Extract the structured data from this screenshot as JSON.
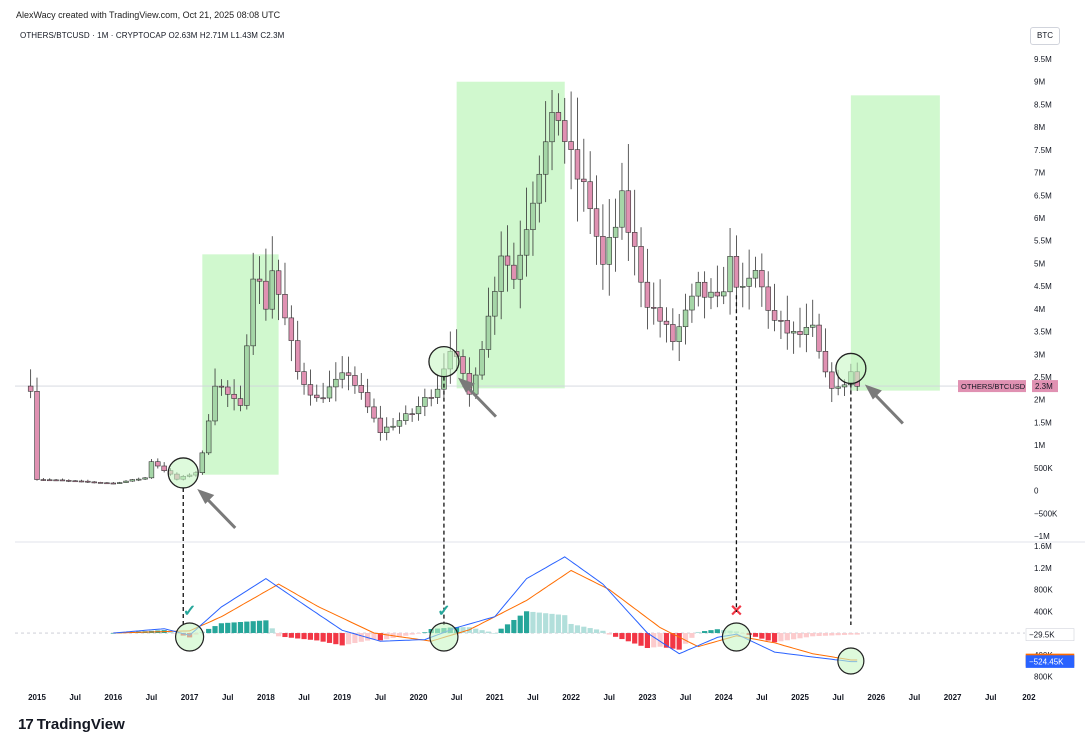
{
  "header": {
    "credit": "AlexWacy created with TradingView.com, Oct 21, 2025 08:08 UTC",
    "legend": "OTHERS/BTCUSD · 1M · CRYPTOCAP  O2.63M  H2.71M  L1.43M  C2.3M",
    "currency": "BTC"
  },
  "brand": {
    "logo_mark": "17",
    "logo_text": "TradingView"
  },
  "chart_data": [
    {
      "type": "candlestick",
      "symbol": "OTHERS/BTCUSD",
      "interval": "1M",
      "source": "CRYPTOCAP",
      "ohlc_last": {
        "open": "2.63M",
        "high": "2.71M",
        "low": "1.43M",
        "close": "2.3M"
      },
      "ylim": [
        -1000000,
        9500000
      ],
      "y_ticks": [
        "9.5M",
        "9M",
        "8.5M",
        "8M",
        "7.5M",
        "7M",
        "6.5M",
        "6M",
        "5.5M",
        "5M",
        "4.5M",
        "4M",
        "3.5M",
        "3M",
        "2.5M",
        "2M",
        "1.5M",
        "1M",
        "500K",
        "0",
        "−500K",
        "−1M"
      ],
      "y_tick_values": [
        9500000,
        9000000,
        8500000,
        8000000,
        7500000,
        7000000,
        6500000,
        6000000,
        5500000,
        5000000,
        4500000,
        4000000,
        3500000,
        3000000,
        2500000,
        2000000,
        1500000,
        1000000,
        500000,
        0,
        -500000,
        -1000000
      ],
      "x_ticks": [
        "2015",
        "Jul",
        "2016",
        "Jul",
        "2017",
        "Jul",
        "2018",
        "Jul",
        "2019",
        "Jul",
        "2020",
        "Jul",
        "2021",
        "Jul",
        "2022",
        "Jul",
        "2023",
        "Jul",
        "2024",
        "Jul",
        "2025",
        "Jul",
        "2026",
        "Jul",
        "2027",
        "Jul",
        "202"
      ],
      "last_price_label": "OTHERS/BTCUSD",
      "last_price_value": "2.3M",
      "last_price": 2300000,
      "anchors": [
        {
          "date": "2015-01",
          "close": 250000
        },
        {
          "date": "2016-01",
          "close": 160000
        },
        {
          "date": "2016-06",
          "close": 280000
        },
        {
          "date": "2016-07",
          "close": 650000
        },
        {
          "date": "2016-11",
          "close": 250000
        },
        {
          "date": "2017-02",
          "close": 400000
        },
        {
          "date": "2017-03",
          "close": 800000
        },
        {
          "date": "2017-05",
          "close": 2400000
        },
        {
          "date": "2017-09",
          "close": 1800000
        },
        {
          "date": "2017-11",
          "close": 4900000
        },
        {
          "date": "2018-01",
          "close": 4100000
        },
        {
          "date": "2018-02",
          "close": 4900000
        },
        {
          "date": "2018-06",
          "close": 2600000
        },
        {
          "date": "2018-09",
          "close": 2000000
        },
        {
          "date": "2019-02",
          "close": 2600000
        },
        {
          "date": "2019-07",
          "close": 1300000
        },
        {
          "date": "2019-12",
          "close": 1700000
        },
        {
          "date": "2020-04",
          "close": 2300000
        },
        {
          "date": "2020-06",
          "close": 3200000
        },
        {
          "date": "2020-09",
          "close": 2100000
        },
        {
          "date": "2020-12",
          "close": 3800000
        },
        {
          "date": "2021-02",
          "close": 5300000
        },
        {
          "date": "2021-04",
          "close": 4700000
        },
        {
          "date": "2021-08",
          "close": 7200000
        },
        {
          "date": "2021-11",
          "close": 8300000
        },
        {
          "date": "2022-01",
          "close": 7200000
        },
        {
          "date": "2022-04",
          "close": 6300000
        },
        {
          "date": "2022-06",
          "close": 4900000
        },
        {
          "date": "2022-09",
          "close": 6300000
        },
        {
          "date": "2023-01",
          "close": 4200000
        },
        {
          "date": "2023-05",
          "close": 3300000
        },
        {
          "date": "2023-09",
          "close": 4400000
        },
        {
          "date": "2023-12",
          "close": 4100000
        },
        {
          "date": "2024-02",
          "close": 5000000
        },
        {
          "date": "2024-04",
          "close": 4300000
        },
        {
          "date": "2024-06",
          "close": 4800000
        },
        {
          "date": "2024-09",
          "close": 3700000
        },
        {
          "date": "2024-12",
          "close": 3400000
        },
        {
          "date": "2025-03",
          "close": 3500000
        },
        {
          "date": "2025-05",
          "close": 2500000
        },
        {
          "date": "2025-07",
          "close": 2200000
        },
        {
          "date": "2025-09",
          "close": 2600000
        },
        {
          "date": "2025-10",
          "close": 2300000
        }
      ],
      "highlight_zones": [
        {
          "from": "2017-03",
          "to": "2018-03",
          "low": 350000,
          "high": 5200000
        },
        {
          "from": "2020-07",
          "to": "2021-12",
          "low": 2250000,
          "high": 9000000
        },
        {
          "from": "2025-09",
          "to": "2026-11",
          "low": 2200000,
          "high": 8700000
        }
      ],
      "entry_markers": [
        "2016-12",
        "2020-05",
        "2025-09"
      ],
      "colors": {
        "up": "#a5d6a7",
        "down": "#e091b2",
        "zone": "#c8f7c5",
        "arrow": "#7a7a7a",
        "last_price_bg": "#e091b2"
      }
    },
    {
      "type": "macd",
      "y_ticks": [
        "1.6M",
        "1.2M",
        "800K",
        "400K",
        "400K",
        "800K"
      ],
      "y_tick_values": [
        1600000,
        1200000,
        800000,
        400000,
        -400000,
        -800000
      ],
      "labels": [
        {
          "text": "−29.5K",
          "value": -29500,
          "bg": "#ffffff",
          "fg": "#131722"
        },
        {
          "text": "−494.95K",
          "value": -494950,
          "bg": "#ff6d00",
          "fg": "#ffffff"
        },
        {
          "text": "−524.45K",
          "value": -524450,
          "bg": "#2962ff",
          "fg": "#ffffff"
        }
      ],
      "macd_anchors": [
        {
          "date": "2016-01",
          "v": 0
        },
        {
          "date": "2016-09",
          "v": 80000
        },
        {
          "date": "2017-01",
          "v": -40000
        },
        {
          "date": "2017-06",
          "v": 480000
        },
        {
          "date": "2018-01",
          "v": 1000000
        },
        {
          "date": "2018-06",
          "v": 600000
        },
        {
          "date": "2019-01",
          "v": 50000
        },
        {
          "date": "2019-07",
          "v": -150000
        },
        {
          "date": "2020-02",
          "v": -120000
        },
        {
          "date": "2020-07",
          "v": 100000
        },
        {
          "date": "2021-01",
          "v": 300000
        },
        {
          "date": "2021-06",
          "v": 1000000
        },
        {
          "date": "2021-12",
          "v": 1400000
        },
        {
          "date": "2022-06",
          "v": 900000
        },
        {
          "date": "2023-01",
          "v": 0
        },
        {
          "date": "2023-06",
          "v": -380000
        },
        {
          "date": "2023-12",
          "v": -80000
        },
        {
          "date": "2024-03",
          "v": -20000
        },
        {
          "date": "2024-09",
          "v": -350000
        },
        {
          "date": "2025-03",
          "v": -440000
        },
        {
          "date": "2025-09",
          "v": -524450
        }
      ],
      "signal_anchors": [
        {
          "date": "2016-01",
          "v": 0
        },
        {
          "date": "2017-01",
          "v": 40000
        },
        {
          "date": "2017-06",
          "v": 300000
        },
        {
          "date": "2018-03",
          "v": 900000
        },
        {
          "date": "2018-09",
          "v": 500000
        },
        {
          "date": "2019-06",
          "v": 0
        },
        {
          "date": "2020-03",
          "v": -150000
        },
        {
          "date": "2020-09",
          "v": 60000
        },
        {
          "date": "2021-06",
          "v": 600000
        },
        {
          "date": "2022-01",
          "v": 1150000
        },
        {
          "date": "2022-07",
          "v": 800000
        },
        {
          "date": "2023-03",
          "v": 100000
        },
        {
          "date": "2023-09",
          "v": -250000
        },
        {
          "date": "2024-03",
          "v": -50000
        },
        {
          "date": "2024-09",
          "v": -180000
        },
        {
          "date": "2025-03",
          "v": -380000
        },
        {
          "date": "2025-09",
          "v": -494950
        }
      ],
      "signal_markers": [
        {
          "date": "2017-01",
          "mark": "✓",
          "color": "#26a69a"
        },
        {
          "date": "2020-05",
          "mark": "✓",
          "color": "#26a69a"
        },
        {
          "date": "2024-03",
          "mark": "✕",
          "color": "#f23645"
        },
        {
          "date": "2025-09",
          "mark": "",
          "color": ""
        }
      ],
      "colors": {
        "macd": "#2962ff",
        "signal": "#ff6d00",
        "hist_up_strong": "#26a69a",
        "hist_up_weak": "#b2dfdb",
        "hist_down_strong": "#f23645",
        "hist_down_weak": "#fccbcd",
        "circle": "#c8f7c5"
      }
    }
  ]
}
